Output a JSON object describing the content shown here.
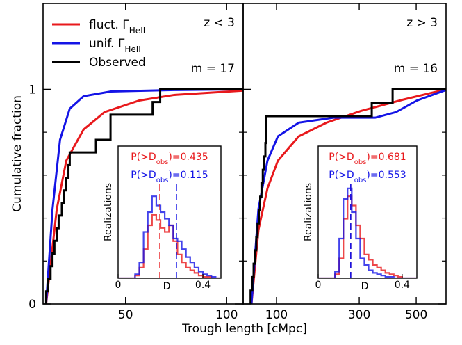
{
  "chart_data": {
    "type": "multi-panel",
    "xlabel": "Trough length [cMpc]",
    "ylabel": "Cumulative fraction",
    "ylim": [
      0,
      1.4
    ],
    "yticks": [
      0,
      1
    ],
    "yminorticks": [
      0.2,
      0.4,
      0.6,
      0.8
    ],
    "legend": [
      {
        "name": "fluct. Γ",
        "subscript": "HeII",
        "color": "#e8191c"
      },
      {
        "name": "unif. Γ",
        "subscript": "HeII",
        "color": "#1414e6"
      },
      {
        "name": "Observed",
        "color": "#000000"
      }
    ],
    "panels": [
      {
        "type": "line",
        "label": "z < 3",
        "m_label": "m = 17",
        "xscale": "log",
        "xlim": [
          28.4,
          112
        ],
        "xticks": [
          50,
          100
        ],
        "series": [
          {
            "type": "line",
            "color": "#e8191c",
            "x": [
              29.0,
              31.2,
              33.3,
              37.5,
              43.3,
              54.9,
              69.8,
              112
            ],
            "y": [
              0,
              0.442,
              0.668,
              0.813,
              0.894,
              0.948,
              0.974,
              0.994
            ]
          },
          {
            "type": "line",
            "color": "#1414e6",
            "x": [
              29.0,
              30.3,
              31.9,
              34.1,
              37.5,
              45.2,
              69.8,
              112
            ],
            "y": [
              0,
              0.442,
              0.765,
              0.91,
              0.968,
              0.99,
              0.997,
              1.0
            ]
          },
          {
            "type": "step",
            "color": "#000000",
            "x": [
              29.0,
              29.4,
              29.9,
              30.3,
              30.7,
              31.2,
              31.6,
              32.3,
              32.7,
              33.3,
              33.8,
              34.1,
              40.8,
              45.1,
              45.1,
              60.2,
              63.4
            ],
            "y": [
              0.059,
              0.118,
              0.176,
              0.235,
              0.294,
              0.353,
              0.412,
              0.471,
              0.529,
              0.588,
              0.647,
              0.706,
              0.765,
              0.824,
              0.882,
              0.941,
              1.0
            ]
          }
        ],
        "inset": {
          "type": "histogram",
          "xlabel": "D",
          "ylabel": "Realizations",
          "xlim": [
            0,
            0.485
          ],
          "xticks": [
            0,
            0.4
          ],
          "ylim": [
            0,
            100
          ],
          "stat_prefix": "P(>D",
          "stat_sub": "obs",
          "stat_suffix": ")=",
          "bins": [
            0,
            0.02,
            0.04,
            0.06,
            0.08,
            0.1,
            0.12,
            0.14,
            0.16,
            0.18,
            0.2,
            0.22,
            0.24,
            0.26,
            0.28,
            0.3,
            0.32,
            0.34,
            0.36,
            0.38,
            0.4,
            0.42,
            0.44,
            0.46,
            0.48
          ],
          "series": [
            {
              "color": "#e8191c",
              "values": [
                0,
                0,
                0,
                0,
                2,
                8,
                22,
                40,
                48,
                44,
                38,
                35,
                40,
                28,
                18,
                12,
                8,
                6,
                4,
                2,
                1,
                1,
                0,
                0
              ],
              "d_obs": 0.197,
              "p_value": 0.435
            },
            {
              "color": "#1414e6",
              "values": [
                0,
                0,
                0,
                0,
                3,
                12,
                35,
                50,
                62,
                55,
                50,
                45,
                40,
                30,
                28,
                22,
                16,
                12,
                8,
                5,
                3,
                2,
                1,
                0
              ],
              "d_obs": 0.275,
              "p_value": 0.115
            }
          ]
        }
      },
      {
        "type": "line",
        "label": "z > 3",
        "m_label": "m = 16",
        "xscale": "sqrt",
        "xlim": [
          49.7,
          625
        ],
        "xticks": [
          100,
          300,
          500
        ],
        "series": [
          {
            "type": "line",
            "color": "#e8191c",
            "x": [
              60.6,
              70.6,
              84.7,
              102.5,
              143.3,
              208.2,
              306.4,
              449.2,
              625
            ],
            "y": [
              0,
              0.345,
              0.539,
              0.668,
              0.781,
              0.845,
              0.9,
              0.952,
              1.0
            ]
          },
          {
            "type": "line",
            "color": "#1414e6",
            "x": [
              60.6,
              70.6,
              84.7,
              102.5,
              143.3,
              226.5,
              351,
              423.5,
              502.9,
              625
            ],
            "y": [
              0,
              0.442,
              0.668,
              0.781,
              0.845,
              0.868,
              0.868,
              0.894,
              0.948,
              0.997
            ]
          },
          {
            "type": "step",
            "color": "#000000",
            "x": [
              59.4,
              61.8,
              63.6,
              65.5,
              67.4,
              69.3,
              71.2,
              73.2,
              75.2,
              77.2,
              79.2,
              81.3,
              82.0,
              82.7,
              339.6,
              411
            ],
            "y": [
              0.0625,
              0.125,
              0.1875,
              0.25,
              0.3125,
              0.375,
              0.4375,
              0.5,
              0.5625,
              0.625,
              0.6875,
              0.75,
              0.8125,
              0.875,
              0.9375,
              1.0
            ]
          }
        ],
        "inset": {
          "type": "histogram",
          "xlabel": "D",
          "ylabel": "Realizations",
          "xlim": [
            0,
            0.47
          ],
          "xticks": [
            0,
            0.4
          ],
          "ylim": [
            0,
            100
          ],
          "stat_prefix": "P(>D",
          "stat_sub": "obs",
          "stat_suffix": ")=",
          "bins": [
            0,
            0.02,
            0.04,
            0.06,
            0.08,
            0.1,
            0.12,
            0.14,
            0.16,
            0.18,
            0.2,
            0.22,
            0.24,
            0.26,
            0.28,
            0.3,
            0.32,
            0.34,
            0.36,
            0.38,
            0.4,
            0.42,
            0.44,
            0.46,
            0.48
          ],
          "series": [
            {
              "color": "#e8191c",
              "values": [
                0,
                0,
                0,
                0,
                3,
                15,
                45,
                62,
                55,
                40,
                30,
                18,
                14,
                10,
                8,
                6,
                4,
                3,
                2,
                1,
                0,
                0,
                0,
                0
              ],
              "d_obs": 0.155,
              "p_value": 0.681
            },
            {
              "color": "#1414e6",
              "values": [
                0,
                0,
                0,
                0,
                5,
                30,
                60,
                68,
                50,
                30,
                15,
                10,
                6,
                4,
                3,
                2,
                1,
                1,
                0,
                0,
                0,
                0,
                0,
                0
              ],
              "d_obs": 0.155,
              "p_value": 0.553
            }
          ]
        }
      }
    ]
  }
}
